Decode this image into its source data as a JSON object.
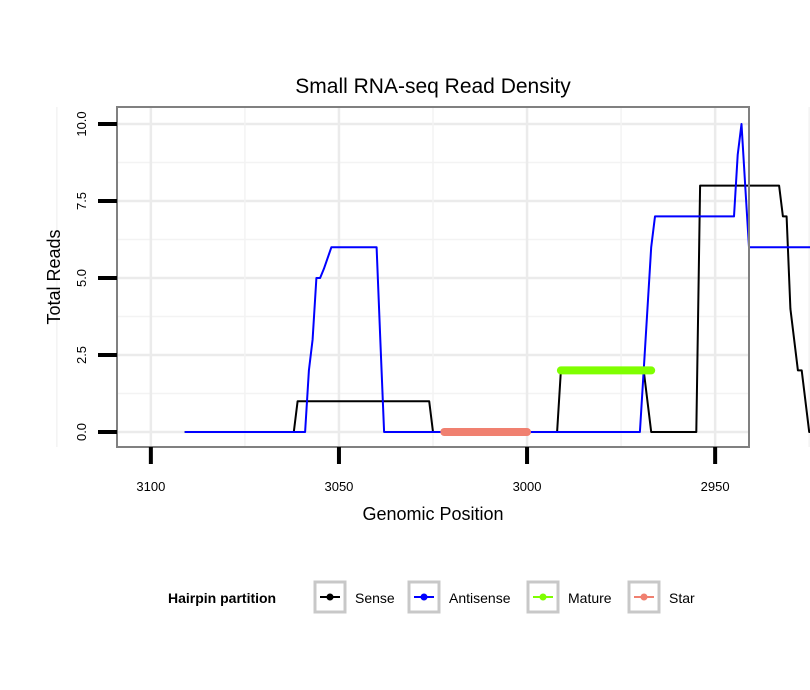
{
  "chart_data": {
    "type": "line",
    "title": "Small RNA-seq Read Density",
    "xlabel": "Genomic Position",
    "ylabel": "Total Reads",
    "x_reversed": true,
    "xlim": [
      3109,
      2941
    ],
    "ylim": [
      0,
      10
    ],
    "x_ticks": [
      3100,
      3050,
      3000,
      2950
    ],
    "x_tick_labels": [
      "3100",
      "3050",
      "3000",
      "2950"
    ],
    "y_ticks": [
      0,
      2.5,
      5,
      7.5,
      10
    ],
    "y_tick_labels": [
      "0.0",
      "2.5",
      "5.0",
      "7.5",
      "10.0"
    ],
    "grid": true,
    "legend": {
      "title": "Hairpin partition",
      "placement": "bottom",
      "entries": [
        "Sense",
        "Antisense",
        "Mature",
        "Star"
      ]
    },
    "series": [
      {
        "name": "Sense",
        "color": "#000000",
        "width": 2,
        "x": [
          3091,
          3062,
          3061,
          3048,
          3026,
          3025,
          2992,
          2991,
          2969,
          2967,
          2955,
          2954,
          2941,
          2933,
          2932,
          2931,
          2930,
          2928,
          2927,
          2925,
          2924,
          2919
        ],
        "y": [
          0,
          0,
          1,
          1,
          1,
          0,
          0,
          2,
          2,
          0,
          0,
          8,
          8,
          8,
          7,
          7,
          4,
          2,
          2,
          0,
          0,
          0
        ]
      },
      {
        "name": "Antisense",
        "color": "#0000ff",
        "width": 2,
        "x": [
          3091,
          3059,
          3058,
          3057,
          3056,
          3055,
          3054,
          3052,
          3051,
          3040,
          3039,
          3038,
          3037,
          2970,
          2969,
          2967,
          2966,
          2945,
          2944,
          2943,
          2942,
          2941,
          2939,
          2938,
          2923,
          2922,
          2921
        ],
        "y": [
          0,
          0,
          2,
          3,
          5,
          5,
          5.3,
          6,
          6,
          6,
          3,
          0,
          0,
          0,
          2,
          6,
          7,
          7,
          9,
          10,
          8,
          6,
          6,
          6,
          6,
          0,
          0
        ]
      },
      {
        "name": "Mature",
        "color": "#7fff00",
        "width": 8,
        "x": [
          2991,
          2967
        ],
        "y": [
          2,
          2
        ]
      },
      {
        "name": "Star",
        "color": "#f08070",
        "width": 8,
        "x": [
          3022,
          3000
        ],
        "y": [
          0,
          0
        ]
      }
    ]
  }
}
